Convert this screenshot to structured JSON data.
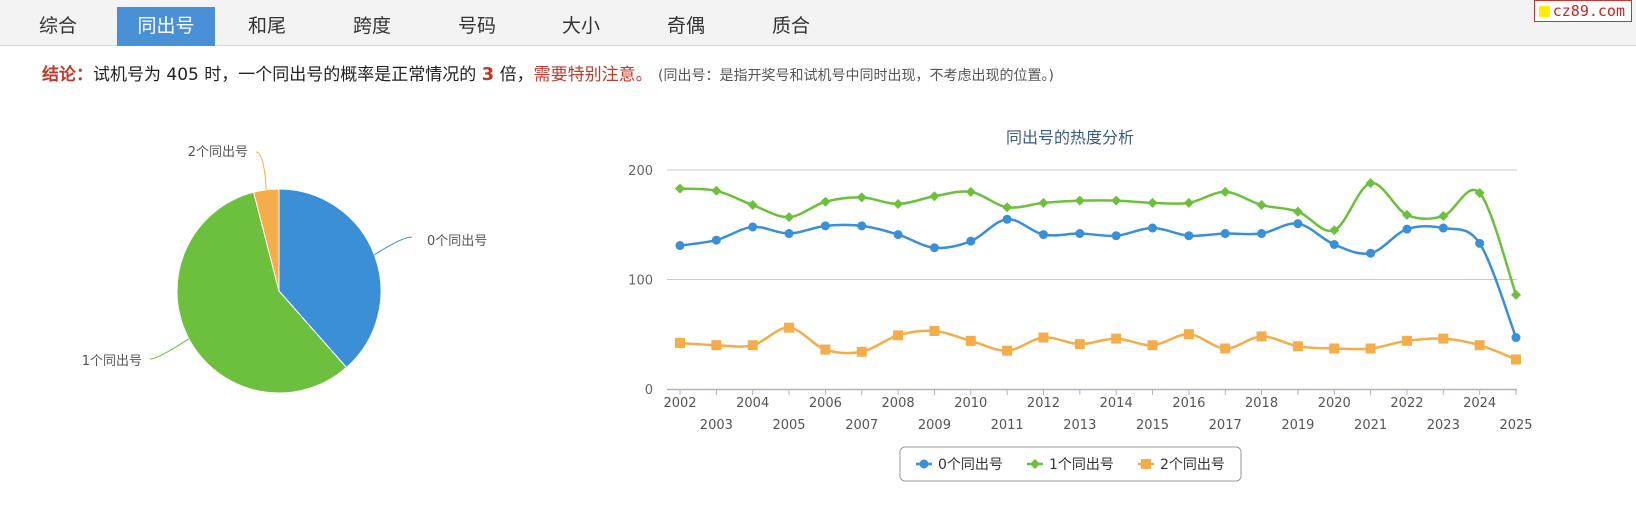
{
  "tabs": [
    {
      "label": "综合",
      "active": false
    },
    {
      "label": "同出号",
      "active": true
    },
    {
      "label": "和尾",
      "active": false
    },
    {
      "label": "跨度",
      "active": false
    },
    {
      "label": "号码",
      "active": false
    },
    {
      "label": "大小",
      "active": false
    },
    {
      "label": "奇偶",
      "active": false
    },
    {
      "label": "质合",
      "active": false
    }
  ],
  "logo": "cz89.com",
  "conclusion": {
    "label": "结论：",
    "text1": "试机号为 405 时，一个同出号的概率是正常情况的",
    "multiplier": "3",
    "text2": "倍，",
    "warning": "需要特别注意。",
    "note": "(同出号：是指开奖号和试机号中同时出现，不考虑出现的位置。)"
  },
  "colors": {
    "zero": "#3a8fd6",
    "one": "#6dbf3e",
    "two": "#f5ac4a",
    "tab_active": "#4a90d6",
    "warning": "#c0392b"
  },
  "chart_data": [
    {
      "type": "pie",
      "labels": [
        "0个同出号",
        "1个同出号",
        "2个同出号"
      ],
      "values": [
        38.5,
        57.5,
        4.0
      ]
    },
    {
      "type": "line",
      "title": "同出号的热度分析",
      "x": [
        "2002",
        "2003",
        "2004",
        "2005",
        "2006",
        "2007",
        "2008",
        "2009",
        "2010",
        "2011",
        "2012",
        "2013",
        "2014",
        "2015",
        "2016",
        "2017",
        "2018",
        "2019",
        "2020",
        "2021",
        "2022",
        "2023",
        "2024",
        "2025"
      ],
      "yticks": [
        0,
        100,
        200
      ],
      "ylim": [
        0,
        200
      ],
      "legend_position": "bottom",
      "series": [
        {
          "name": "0个同出号",
          "marker": "circle",
          "values": [
            131,
            136,
            148,
            142,
            149,
            149,
            141,
            129,
            135,
            155,
            141,
            142,
            140,
            147,
            140,
            142,
            142,
            151,
            132,
            124,
            146,
            147,
            133,
            47
          ]
        },
        {
          "name": "1个同出号",
          "marker": "diamond",
          "values": [
            183,
            181,
            168,
            157,
            171,
            175,
            169,
            176,
            180,
            166,
            170,
            172,
            172,
            170,
            170,
            180,
            168,
            162,
            145,
            188,
            159,
            158,
            179,
            86
          ]
        },
        {
          "name": "2个同出号",
          "marker": "square",
          "values": [
            42,
            40,
            40,
            56,
            36,
            34,
            49,
            53,
            44,
            35,
            47,
            41,
            46,
            40,
            50,
            37,
            48,
            39,
            37,
            37,
            44,
            46,
            40,
            27
          ]
        }
      ]
    }
  ]
}
